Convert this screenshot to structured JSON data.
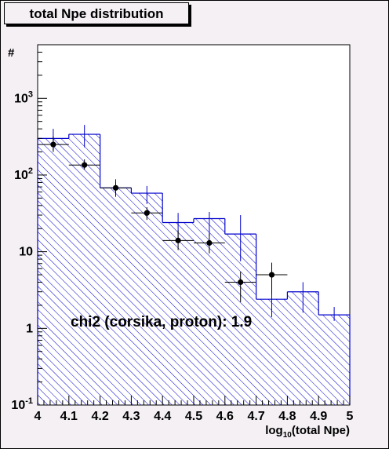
{
  "title": "total Npe distribution",
  "colors": {
    "background": "#f4f0f4",
    "mc_line": "#0000cc",
    "data_marker": "#000000"
  },
  "chart_data": {
    "type": "bar",
    "title": "total Npe distribution",
    "ylabel": "#",
    "xlabel": "log10(total Npe)",
    "xlabel_base": "log",
    "xlabel_sub": "10",
    "xlabel_rest": "(total Npe)",
    "xlim": [
      4,
      5
    ],
    "ylim": [
      0.1,
      5000
    ],
    "y_scale": "log",
    "x_ticks": [
      "4",
      "4.1",
      "4.2",
      "4.3",
      "4.4",
      "4.5",
      "4.6",
      "4.7",
      "4.8",
      "4.9",
      "5"
    ],
    "y_ticks": [
      {
        "value": 0.1,
        "base": "10",
        "exp": "-1"
      },
      {
        "value": 1,
        "base": "1",
        "exp": ""
      },
      {
        "value": 10,
        "base": "10",
        "exp": ""
      },
      {
        "value": 100,
        "base": "10",
        "exp": "2"
      },
      {
        "value": 1000,
        "base": "10",
        "exp": "3"
      }
    ],
    "annotation": "chi2 (corsika, proton): 1.9",
    "mc_histogram": {
      "style": "hatched",
      "bin_edges": [
        4.0,
        4.1,
        4.2,
        4.3,
        4.4,
        4.5,
        4.6,
        4.7,
        4.8,
        4.9,
        5.0
      ],
      "values": [
        300,
        340,
        68,
        58,
        24,
        27,
        17,
        2.4,
        3.0,
        1.5
      ],
      "err_low": [
        210,
        230,
        52,
        42,
        15,
        16,
        7.5,
        1.4,
        1.6,
        1.25
      ],
      "err_high": [
        400,
        450,
        88,
        72,
        32,
        33,
        30,
        4.0,
        4.0,
        1.9
      ]
    },
    "data_points": {
      "x": [
        4.05,
        4.15,
        4.25,
        4.35,
        4.45,
        4.55,
        4.65,
        4.75
      ],
      "y": [
        250,
        135,
        68,
        32,
        14,
        13,
        4,
        5
      ],
      "err_low": [
        200,
        118,
        55,
        26,
        10.5,
        9.5,
        2.2,
        2.8
      ],
      "err_high": [
        320,
        160,
        80,
        38,
        19,
        17,
        5.5,
        7.2
      ]
    }
  }
}
